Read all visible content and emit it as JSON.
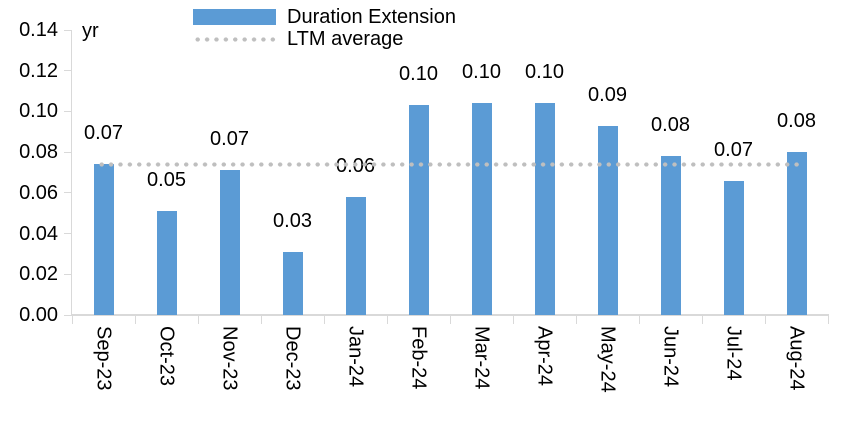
{
  "chart_data": {
    "type": "bar",
    "title": "",
    "ylabel": "yr",
    "xlabel": "",
    "ylim": [
      0,
      0.14
    ],
    "y_ticks": [
      "0.00",
      "0.02",
      "0.04",
      "0.06",
      "0.08",
      "0.10",
      "0.12",
      "0.14"
    ],
    "grid": false,
    "legend_position": "top-center",
    "categories": [
      "Sep-23",
      "Oct-23",
      "Nov-23",
      "Dec-23",
      "Jan-24",
      "Feb-24",
      "Mar-24",
      "Apr-24",
      "May-24",
      "Jun-24",
      "Jul-24",
      "Aug-24"
    ],
    "series": [
      {
        "name": "Duration Extension",
        "type": "bar",
        "color": "#5B9BD5",
        "values": [
          0.074,
          0.051,
          0.071,
          0.031,
          0.058,
          0.103,
          0.104,
          0.104,
          0.093,
          0.078,
          0.066,
          0.08
        ],
        "labels": [
          "0.07",
          "0.05",
          "0.07",
          "0.03",
          "0.06",
          "0.10",
          "0.10",
          "0.10",
          "0.09",
          "0.08",
          "0.07",
          "0.08"
        ]
      },
      {
        "name": "LTM average",
        "type": "line",
        "style": "dotted",
        "color": "#BFBFBF",
        "value": 0.074
      }
    ],
    "axis_color": "#D9D9D9",
    "text_color": "#000000"
  }
}
